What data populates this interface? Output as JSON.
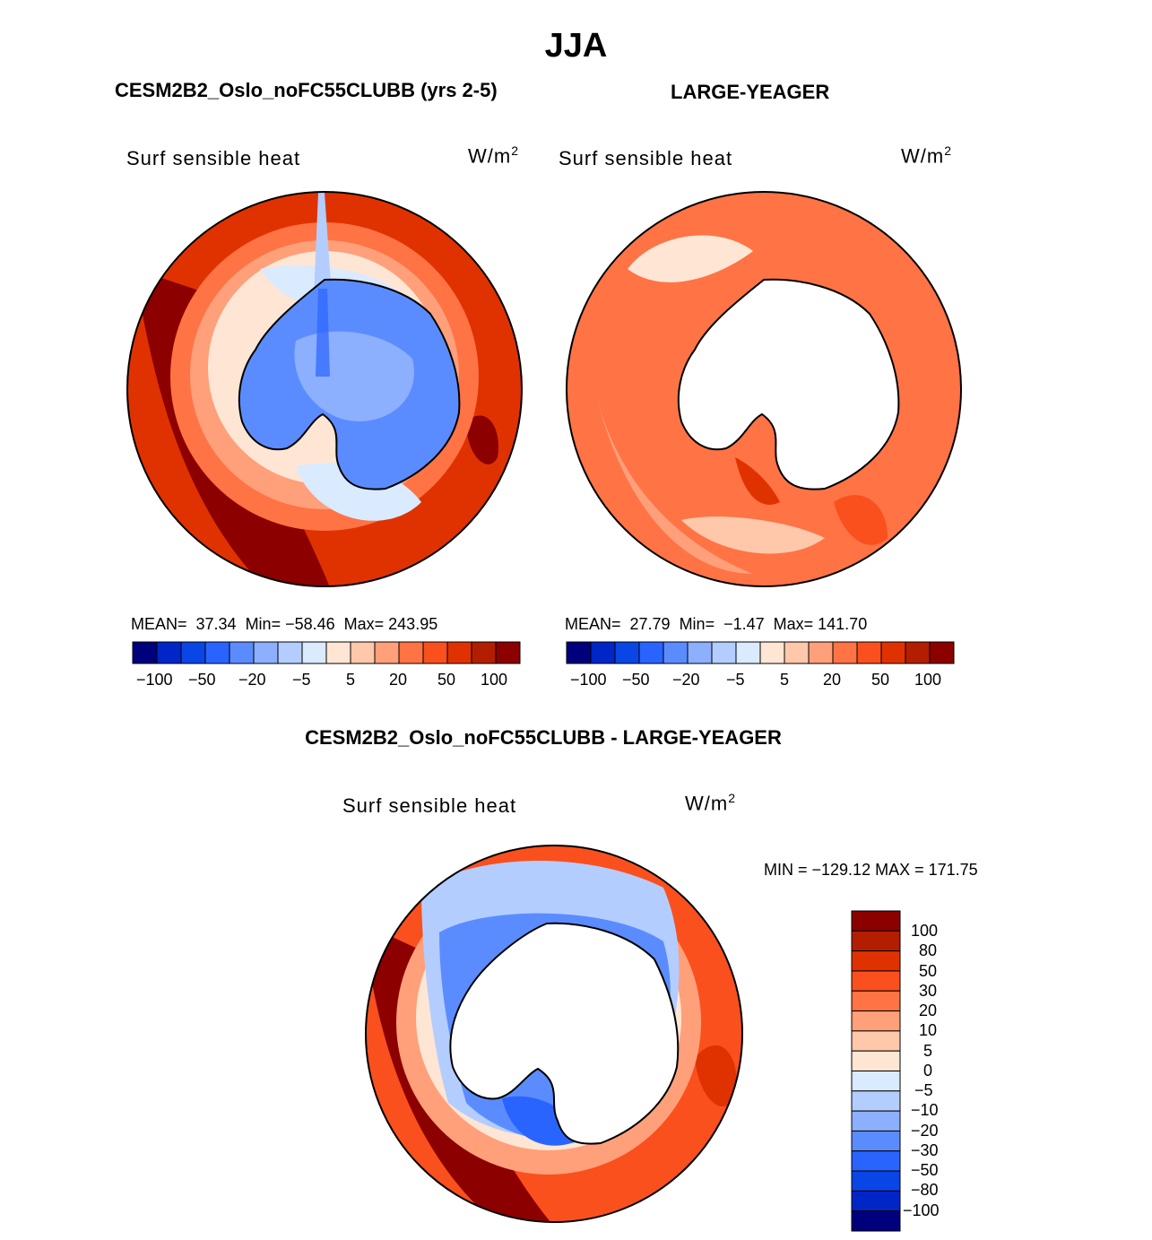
{
  "season": "JJA",
  "colors": [
    "#00007d",
    "#0026c8",
    "#0a46e6",
    "#2964ff",
    "#5b8cff",
    "#8caffe",
    "#b4cdff",
    "#daeaff",
    "#ffe6d4",
    "#ffc8aa",
    "#ffa07a",
    "#ff7345",
    "#fa501e",
    "#e03200",
    "#b41e00",
    "#8c0000"
  ],
  "panels": {
    "left": {
      "title": "CESM2B2_Oslo_noFC55CLUBB (yrs 2-5)",
      "variable": "Surf sensible heat",
      "units": "W/m",
      "units_exp": "2",
      "stats": "MEAN=  37.34  Min= −58.46  Max= 243.95",
      "colorbar_ticks": [
        "−100",
        "−50",
        "−20",
        "−5",
        "5",
        "20",
        "50",
        "100"
      ]
    },
    "right": {
      "title": "LARGE-YEAGER",
      "variable": "Surf sensible heat",
      "units": "W/m",
      "units_exp": "2",
      "stats": "MEAN=  27.79  Min=  −1.47  Max= 141.70",
      "colorbar_ticks": [
        "−100",
        "−50",
        "−20",
        "−5",
        "5",
        "20",
        "50",
        "100"
      ]
    },
    "diff": {
      "title": "CESM2B2_Oslo_noFC55CLUBB - LARGE-YEAGER",
      "variable": "Surf sensible heat",
      "units": "W/m",
      "units_exp": "2",
      "minmax": "MIN = −129.12 MAX = 171.75",
      "colorbar_labels": [
        "100",
        "80",
        "50",
        "30",
        "20",
        "10",
        "5",
        "0",
        "−5",
        "−10",
        "−20",
        "−30",
        "−50",
        "−80",
        "−100"
      ]
    }
  }
}
